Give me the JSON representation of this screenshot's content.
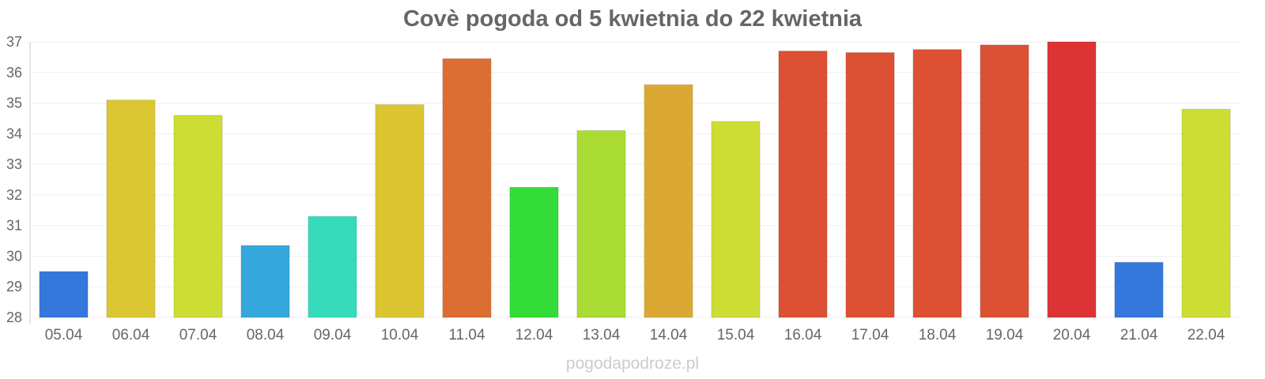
{
  "chart_data": {
    "type": "bar",
    "title": "Covè pogoda od 5 kwietnia do 22 kwietnia",
    "xlabel": "",
    "ylabel": "",
    "ylim": [
      28,
      37
    ],
    "yticks": [
      "28",
      "29",
      "30",
      "31",
      "32",
      "33",
      "34",
      "35",
      "36",
      "37"
    ],
    "grid": true,
    "categories": [
      "05.04",
      "06.04",
      "07.04",
      "08.04",
      "09.04",
      "10.04",
      "11.04",
      "12.04",
      "13.04",
      "14.04",
      "15.04",
      "16.04",
      "17.04",
      "18.04",
      "19.04",
      "20.04",
      "21.04",
      "22.04"
    ],
    "values": [
      29.5,
      35.1,
      34.6,
      30.35,
      31.3,
      34.95,
      36.45,
      32.25,
      34.1,
      35.6,
      34.4,
      36.7,
      36.65,
      36.75,
      36.9,
      37.0,
      29.8,
      34.8
    ],
    "colors": [
      "#3478db",
      "#dbc732",
      "#cedd33",
      "#36a7dc",
      "#36dbbc",
      "#dbc632",
      "#dc6e33",
      "#33dc37",
      "#aadc33",
      "#dba933",
      "#cedd33",
      "#dc5034",
      "#dc5034",
      "#dc5034",
      "#dc5034",
      "#dc3434",
      "#3478db",
      "#cedd33"
    ]
  },
  "watermark": "pogodapodroze.pl"
}
